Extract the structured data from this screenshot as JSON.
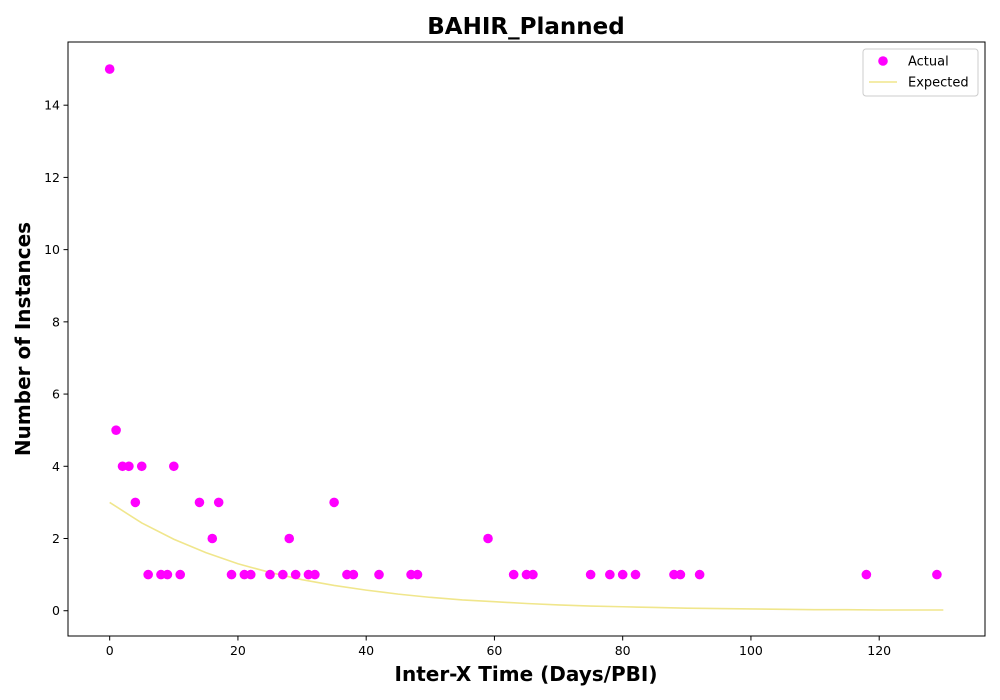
{
  "chart_data": {
    "type": "scatter",
    "title": "BAHIR_Planned",
    "xlabel": "Inter-X Time (Days/PBI)",
    "ylabel": "Number of Instances",
    "xlim": [
      -6.5,
      136.5
    ],
    "ylim": [
      -0.7,
      15.75
    ],
    "xticks": [
      0,
      20,
      40,
      60,
      80,
      100,
      120
    ],
    "yticks": [
      0,
      2,
      4,
      6,
      8,
      10,
      12,
      14
    ],
    "grid": false,
    "legend_position": "top-right",
    "series": [
      {
        "name": "Actual",
        "kind": "scatter",
        "color": "#ff00ff",
        "points": [
          [
            0,
            15
          ],
          [
            1,
            5
          ],
          [
            2,
            4
          ],
          [
            3,
            4
          ],
          [
            4,
            3
          ],
          [
            5,
            4
          ],
          [
            6,
            1
          ],
          [
            8,
            1
          ],
          [
            9,
            1
          ],
          [
            10,
            4
          ],
          [
            11,
            1
          ],
          [
            14,
            3
          ],
          [
            16,
            2
          ],
          [
            17,
            3
          ],
          [
            19,
            1
          ],
          [
            21,
            1
          ],
          [
            22,
            1
          ],
          [
            25,
            1
          ],
          [
            27,
            1
          ],
          [
            28,
            2
          ],
          [
            29,
            1
          ],
          [
            31,
            1
          ],
          [
            32,
            1
          ],
          [
            35,
            3
          ],
          [
            37,
            1
          ],
          [
            38,
            1
          ],
          [
            42,
            1
          ],
          [
            47,
            1
          ],
          [
            48,
            1
          ],
          [
            59,
            2
          ],
          [
            63,
            1
          ],
          [
            65,
            1
          ],
          [
            66,
            1
          ],
          [
            75,
            1
          ],
          [
            78,
            1
          ],
          [
            80,
            1
          ],
          [
            82,
            1
          ],
          [
            88,
            1
          ],
          [
            89,
            1
          ],
          [
            92,
            1
          ],
          [
            118,
            1
          ],
          [
            129,
            1
          ]
        ]
      },
      {
        "name": "Expected",
        "kind": "line",
        "color": "#f0e68c",
        "points": [
          [
            0,
            3.0
          ],
          [
            5,
            2.43
          ],
          [
            10,
            1.98
          ],
          [
            15,
            1.61
          ],
          [
            20,
            1.3
          ],
          [
            25,
            1.06
          ],
          [
            30,
            0.86
          ],
          [
            35,
            0.7
          ],
          [
            40,
            0.57
          ],
          [
            45,
            0.46
          ],
          [
            50,
            0.37
          ],
          [
            55,
            0.3
          ],
          [
            60,
            0.25
          ],
          [
            65,
            0.2
          ],
          [
            70,
            0.16
          ],
          [
            75,
            0.13
          ],
          [
            80,
            0.11
          ],
          [
            85,
            0.09
          ],
          [
            90,
            0.07
          ],
          [
            95,
            0.06
          ],
          [
            100,
            0.05
          ],
          [
            105,
            0.04
          ],
          [
            110,
            0.03
          ],
          [
            115,
            0.03
          ],
          [
            120,
            0.02
          ],
          [
            125,
            0.02
          ],
          [
            130,
            0.02
          ]
        ]
      }
    ]
  }
}
